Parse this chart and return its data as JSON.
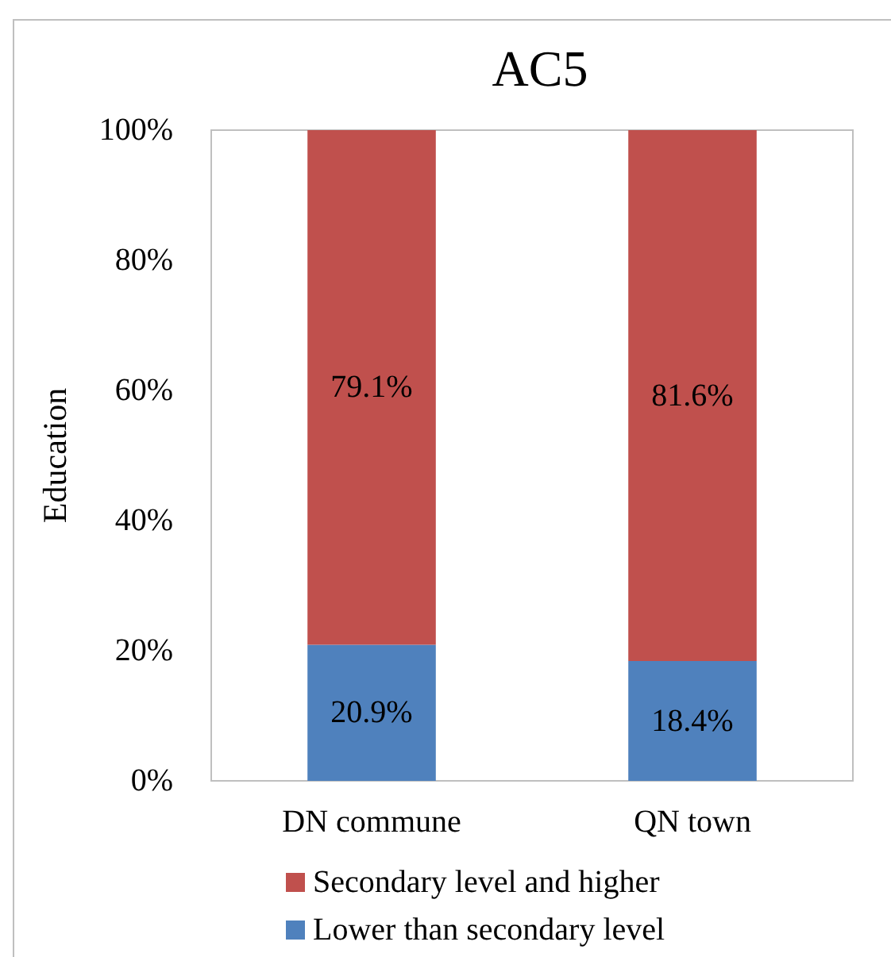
{
  "chart_data": {
    "type": "bar",
    "title": "AC5",
    "ylabel": "Education",
    "categories": [
      "DN commune",
      "QN town"
    ],
    "stacked": true,
    "series": [
      {
        "name": "Lower than secondary level",
        "color": "#4f81bd",
        "values": [
          20.9,
          18.4
        ],
        "value_labels": [
          "20.9%",
          "18.4%"
        ]
      },
      {
        "name": "Secondary level and higher",
        "color": "#c0504d",
        "values": [
          79.1,
          81.6
        ],
        "value_labels": [
          "79.1%",
          "81.6%"
        ]
      }
    ],
    "ylim": [
      0,
      100
    ],
    "yticks": [
      {
        "value": 0,
        "label": "0%"
      },
      {
        "value": 20,
        "label": "20%"
      },
      {
        "value": 40,
        "label": "40%"
      },
      {
        "value": 60,
        "label": "60%"
      },
      {
        "value": 80,
        "label": "80%"
      },
      {
        "value": 100,
        "label": "100%"
      }
    ],
    "legend": "bottom"
  }
}
